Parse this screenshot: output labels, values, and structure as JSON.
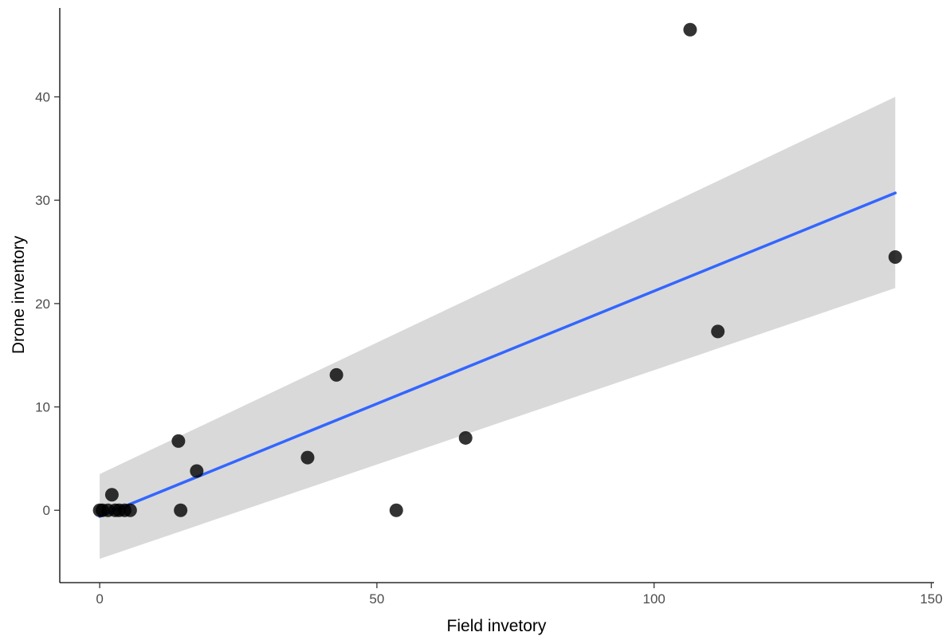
{
  "chart_data": {
    "type": "scatter",
    "title": "",
    "xlabel": "Field invetory",
    "ylabel": "Drone inventory",
    "xlim": [
      -7.2,
      150.5
    ],
    "ylim": [
      -7.0,
      48.6
    ],
    "x_ticks": [
      0,
      50,
      100,
      150
    ],
    "y_ticks": [
      0,
      10,
      20,
      30,
      40
    ],
    "grid": false,
    "legend": "none",
    "points": [
      {
        "x": 0,
        "y": 0
      },
      {
        "x": 0.5,
        "y": 0
      },
      {
        "x": 1.5,
        "y": 0
      },
      {
        "x": 2.2,
        "y": 1.5
      },
      {
        "x": 2.8,
        "y": 0
      },
      {
        "x": 3.5,
        "y": 0
      },
      {
        "x": 4.5,
        "y": 0
      },
      {
        "x": 5.5,
        "y": 0
      },
      {
        "x": 14.2,
        "y": 6.7
      },
      {
        "x": 14.6,
        "y": 0
      },
      {
        "x": 17.5,
        "y": 3.8
      },
      {
        "x": 37.5,
        "y": 5.1
      },
      {
        "x": 42.7,
        "y": 13.1
      },
      {
        "x": 53.5,
        "y": 0
      },
      {
        "x": 66.0,
        "y": 7.0
      },
      {
        "x": 106.5,
        "y": 46.5
      },
      {
        "x": 111.5,
        "y": 17.3
      },
      {
        "x": 143.5,
        "y": 24.5
      }
    ],
    "fit": {
      "method": "linear regression",
      "x_range": [
        0,
        143.5
      ],
      "line_y": [
        -0.6,
        30.7
      ],
      "ci_lower": [
        -4.7,
        21.5
      ],
      "ci_upper": [
        3.5,
        40.0
      ]
    },
    "colors": {
      "points": "#000000",
      "line": "#3366FF",
      "band": "#D9D9D9"
    }
  }
}
